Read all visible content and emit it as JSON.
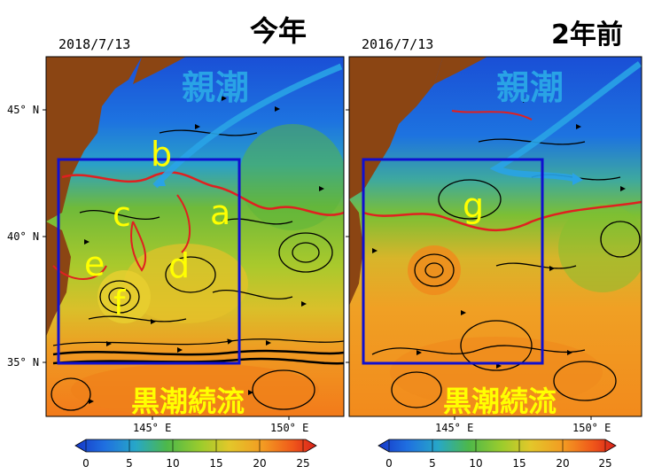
{
  "titles": {
    "left": "今年",
    "right": "2年前"
  },
  "dates": {
    "left": "2018/7/13",
    "right": "2016/7/13"
  },
  "lat_ticks": [
    "45° N",
    "40° N",
    "35° N"
  ],
  "lon_ticks": [
    "145° E",
    "150° E"
  ],
  "currents": {
    "oyashio": "親潮",
    "kuroshio": "黒潮続流"
  },
  "labels": {
    "a": "a",
    "b": "b",
    "c": "c",
    "d": "d",
    "e": "e",
    "f": "f",
    "g": "g"
  },
  "colorbar_ticks": [
    "0",
    "5",
    "10",
    "15",
    "20",
    "25"
  ],
  "colors": {
    "oyashio": "#29a3e6",
    "kuroshio_text": "#ffff00",
    "box": "#1010d0",
    "front": "#e02020",
    "land": "#8b4513"
  }
}
